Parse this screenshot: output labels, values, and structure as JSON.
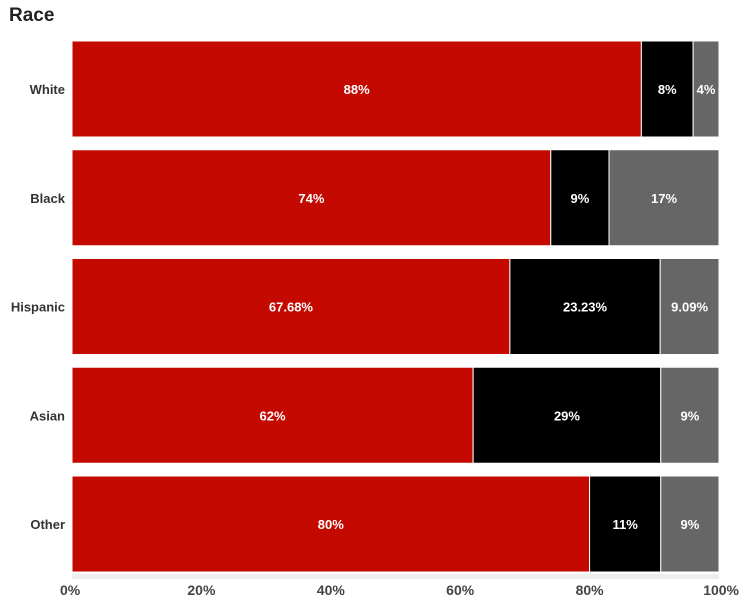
{
  "chart_data": {
    "type": "bar",
    "orientation": "horizontal",
    "stacked": true,
    "title": "Race",
    "xlabel": "",
    "ylabel": "",
    "xlim": [
      0,
      100
    ],
    "grid": false,
    "legend": "none",
    "categories": [
      "White",
      "Black",
      "Hispanic",
      "Asian",
      "Other"
    ],
    "series": [
      {
        "color": "#c40a00",
        "values": [
          88,
          74,
          67.68,
          62,
          80
        ],
        "labels": [
          "88%",
          "74%",
          "67.68%",
          "62%",
          "80%"
        ]
      },
      {
        "color": "#000000",
        "values": [
          8,
          9,
          23.23,
          29,
          11
        ],
        "labels": [
          "8%",
          "9%",
          "23.23%",
          "29%",
          "11%"
        ]
      },
      {
        "color": "#666666",
        "values": [
          4,
          17,
          9.09,
          9,
          9
        ],
        "labels": [
          "4%",
          "17%",
          "9.09%",
          "9%",
          "9%"
        ]
      }
    ],
    "ticks": [
      0,
      20,
      40,
      60,
      80,
      100
    ],
    "tick_labels": [
      "0%",
      "20%",
      "40%",
      "60%",
      "80%",
      "100%"
    ]
  }
}
